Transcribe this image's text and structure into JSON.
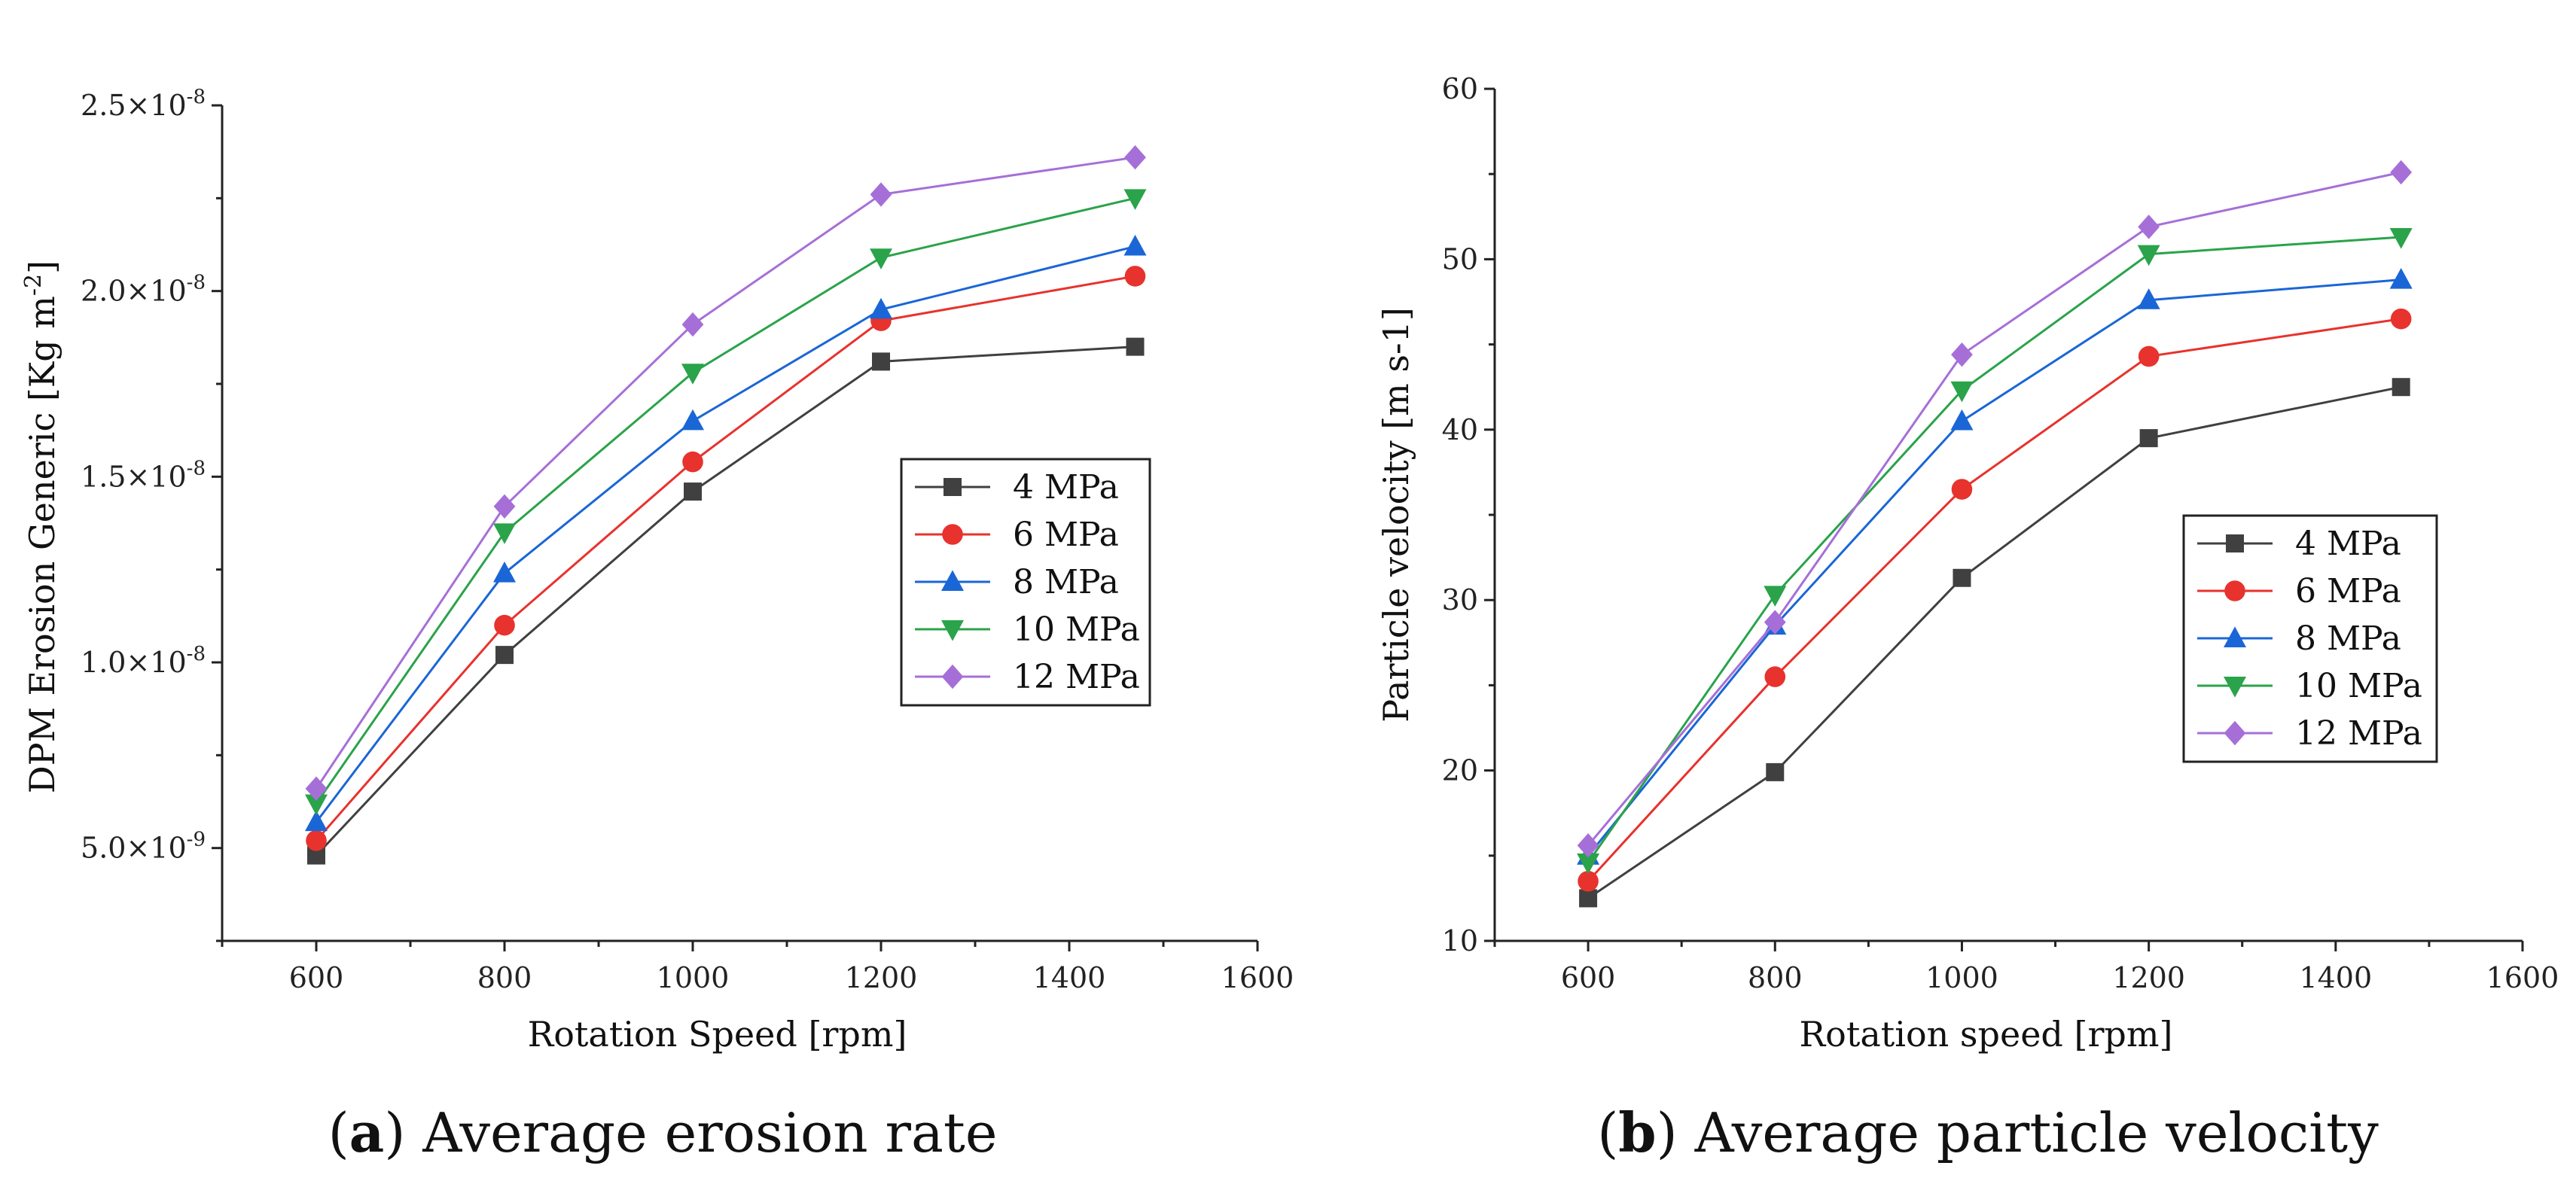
{
  "chart_data": [
    {
      "type": "line",
      "panel": "a",
      "caption_letter": "a",
      "caption_text": " Average erosion rate",
      "xlabel": "Rotation Speed [rpm]",
      "ylabel": "DPM Erosion Generic",
      "ylabel_unit": "[Kg m-2]",
      "xlim": [
        500,
        1600
      ],
      "ylim": [
        2.5e-09,
        2.5e-08
      ],
      "x_ticks": [
        600,
        800,
        1000,
        1200,
        1400,
        1600
      ],
      "y_ticks": [
        {
          "value": 5e-09,
          "mant": "5.0×10",
          "exp": "-9"
        },
        {
          "value": 1e-08,
          "mant": "1.0×10",
          "exp": "-8"
        },
        {
          "value": 1.5e-08,
          "mant": "1.5×10",
          "exp": "-8"
        },
        {
          "value": 2e-08,
          "mant": "2.0×10",
          "exp": "-8"
        },
        {
          "value": 2.5e-08,
          "mant": "2.5×10",
          "exp": "-8"
        }
      ],
      "x": [
        600,
        800,
        1000,
        1200,
        1470
      ],
      "series": [
        {
          "name": "4 MPa",
          "color": "#404040",
          "marker": "square",
          "values": [
            4.8e-09,
            1.02e-08,
            1.46e-08,
            1.81e-08,
            1.85e-08
          ]
        },
        {
          "name": "6 MPa",
          "color": "#e8322d",
          "marker": "circle",
          "values": [
            5.2e-09,
            1.1e-08,
            1.54e-08,
            1.92e-08,
            2.04e-08
          ]
        },
        {
          "name": "8 MPa",
          "color": "#1a66d6",
          "marker": "triangle",
          "values": [
            5.7e-09,
            1.24e-08,
            1.65e-08,
            1.95e-08,
            2.12e-08
          ]
        },
        {
          "name": "10 MPa",
          "color": "#2aa34a",
          "marker": "tridown",
          "values": [
            6.2e-09,
            1.35e-08,
            1.78e-08,
            2.09e-08,
            2.25e-08
          ]
        },
        {
          "name": "12 MPa",
          "color": "#a66fd8",
          "marker": "diamond",
          "values": [
            6.6e-09,
            1.42e-08,
            1.91e-08,
            2.26e-08,
            2.36e-08
          ]
        }
      ]
    },
    {
      "type": "line",
      "panel": "b",
      "caption_letter": "b",
      "caption_text": " Average particle velocity",
      "xlabel": "Rotation speed [rpm]",
      "ylabel": "Particle velocity [m s-1]",
      "xlim": [
        500,
        1600
      ],
      "ylim": [
        10,
        60
      ],
      "x_ticks": [
        600,
        800,
        1000,
        1200,
        1400,
        1600
      ],
      "y_ticks": [
        10,
        20,
        30,
        40,
        50,
        60
      ],
      "x": [
        600,
        800,
        1000,
        1200,
        1470
      ],
      "series": [
        {
          "name": "4 MPa",
          "color": "#404040",
          "marker": "square",
          "values": [
            12.5,
            19.9,
            31.3,
            39.5,
            42.5
          ]
        },
        {
          "name": "6 MPa",
          "color": "#e8322d",
          "marker": "circle",
          "values": [
            13.5,
            25.5,
            36.5,
            44.3,
            46.5
          ]
        },
        {
          "name": "8 MPa",
          "color": "#1a66d6",
          "marker": "triangle",
          "values": [
            15.0,
            28.5,
            40.5,
            47.6,
            48.8
          ]
        },
        {
          "name": "10 MPa",
          "color": "#2aa34a",
          "marker": "tridown",
          "values": [
            14.6,
            30.3,
            42.3,
            50.3,
            51.3
          ]
        },
        {
          "name": "12 MPa",
          "color": "#a66fd8",
          "marker": "diamond",
          "values": [
            15.6,
            28.7,
            44.4,
            51.9,
            55.1
          ]
        }
      ]
    }
  ]
}
